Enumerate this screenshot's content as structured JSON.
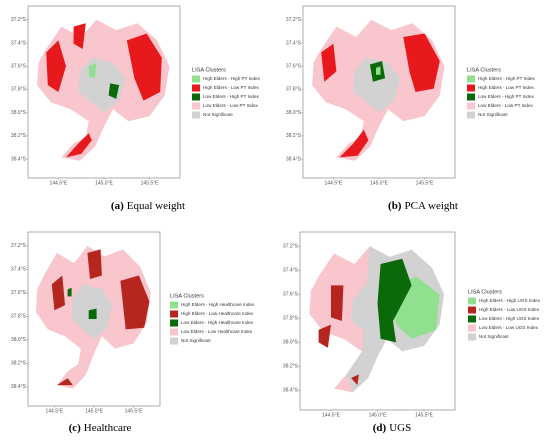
{
  "yticks": [
    "37.2°S",
    "37.4°S",
    "37.6°S",
    "37.8°S",
    "38.0°S",
    "38.2°S",
    "38.4°S"
  ],
  "xticks": [
    "144.5°E",
    "145.0°E",
    "145.5°E"
  ],
  "panels": [
    {
      "label": "(a)",
      "caption": "Equal weight",
      "legend_title": "LISA Clusters",
      "legend": [
        {
          "name": "High Elders - High PT Index",
          "color": "#90e090"
        },
        {
          "name": "High Elders - Low PT Index",
          "color": "#e8191c"
        },
        {
          "name": "Low Elders - High PT Index",
          "color": "#0a6a0a"
        },
        {
          "name": "Low Elders - Low PT Index",
          "color": "#f8c6cc"
        },
        {
          "name": "Not Significant",
          "color": "#d2d2d2"
        }
      ]
    },
    {
      "label": "(b)",
      "caption": "PCA weight",
      "legend_title": "LISA Clusters",
      "legend": [
        {
          "name": "High Elders - High PT Index",
          "color": "#90e090"
        },
        {
          "name": "High Elders - Low PT Index",
          "color": "#e8191c"
        },
        {
          "name": "Low Elders - High PT Index",
          "color": "#0a6a0a"
        },
        {
          "name": "Low Elders - Low PT Index",
          "color": "#f8c6cc"
        },
        {
          "name": "Not Significant",
          "color": "#d2d2d2"
        }
      ]
    },
    {
      "label": "(c)",
      "caption": "Healthcare",
      "legend_title": "LISA Clusters",
      "legend": [
        {
          "name": "High Elders - High Healthcare Index",
          "color": "#90e090"
        },
        {
          "name": "High Elders - Low Healthcare Index",
          "color": "#b5261e"
        },
        {
          "name": "Low Elders - High Healthcare Index",
          "color": "#0a6a0a"
        },
        {
          "name": "Low Elders - Low Healthcare Index",
          "color": "#f8c6cc"
        },
        {
          "name": "Not Significant",
          "color": "#d2d2d2"
        }
      ]
    },
    {
      "label": "(d)",
      "caption": "UGS",
      "legend_title": "LISA Clusters",
      "legend": [
        {
          "name": "High Elders - High UGS Index",
          "color": "#90e090"
        },
        {
          "name": "High Elders - Low UGS Index",
          "color": "#b5261e"
        },
        {
          "name": "Low Elders - High UGS Index",
          "color": "#0a6a0a"
        },
        {
          "name": "Low Elders - Low UGS Index",
          "color": "#f8c6cc"
        },
        {
          "name": "Not Significant",
          "color": "#d2d2d2"
        }
      ]
    }
  ]
}
